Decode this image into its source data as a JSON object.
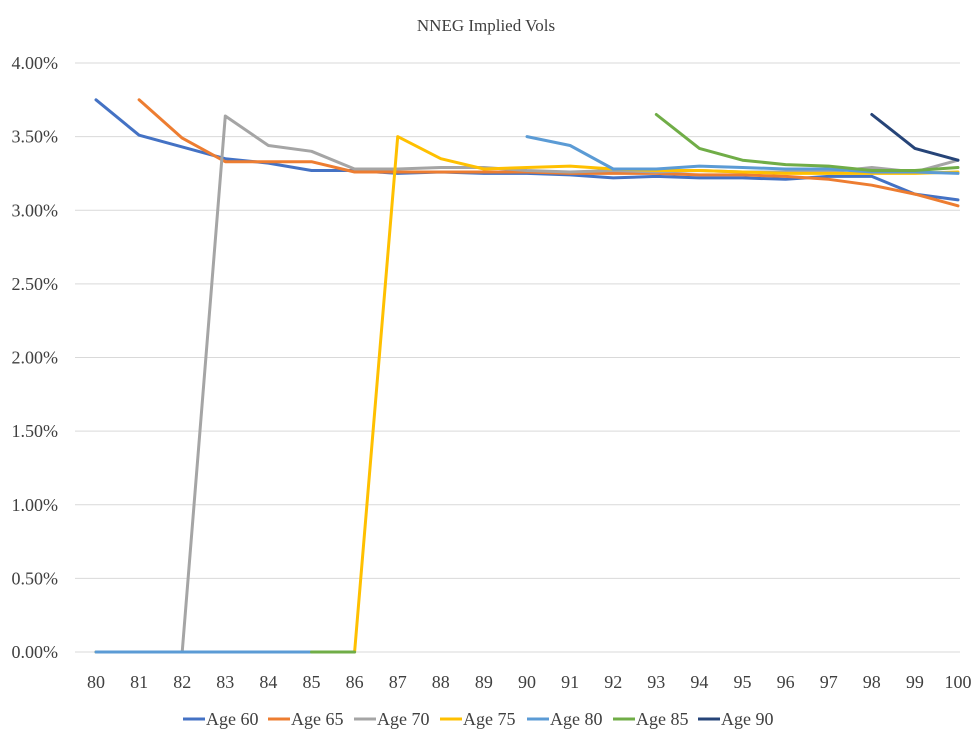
{
  "chart_data": {
    "type": "line",
    "title": "NNEG Implied Vols",
    "xlabel": "",
    "ylabel": "",
    "categories": [
      "80",
      "81",
      "82",
      "83",
      "84",
      "85",
      "86",
      "87",
      "88",
      "89",
      "90",
      "91",
      "92",
      "93",
      "94",
      "95",
      "96",
      "97",
      "98",
      "99",
      "100"
    ],
    "yticks": [
      "0.00%",
      "0.50%",
      "1.00%",
      "1.50%",
      "2.00%",
      "2.50%",
      "3.00%",
      "3.50%",
      "4.00%"
    ],
    "ylim": [
      0,
      0.04
    ],
    "grid": true,
    "legend": "bottom",
    "series": [
      {
        "name": "Age 60",
        "color": "#4472C4",
        "values": [
          0.0375,
          0.0351,
          0.0343,
          0.0335,
          0.0332,
          0.0327,
          0.0327,
          0.0325,
          0.0326,
          0.0325,
          0.0325,
          0.0324,
          0.0322,
          0.0323,
          0.0322,
          0.0322,
          0.0321,
          0.0323,
          0.0323,
          0.0311,
          0.0307
        ]
      },
      {
        "name": "Age 65",
        "color": "#ED7D31",
        "values": [
          null,
          0.0375,
          0.0349,
          0.0333,
          0.0333,
          0.0333,
          0.0326,
          0.0326,
          0.0326,
          0.0326,
          0.0326,
          0.0325,
          0.0325,
          0.0325,
          0.0324,
          0.0324,
          0.0323,
          0.0321,
          0.0317,
          0.0311,
          0.0303
        ]
      },
      {
        "name": "Age 70",
        "color": "#A5A5A5",
        "values": [
          0.0,
          0.0,
          0.0,
          0.0364,
          0.0344,
          0.034,
          0.0328,
          0.0328,
          0.0329,
          0.0329,
          0.0327,
          0.0326,
          0.0327,
          0.0326,
          0.0327,
          0.0326,
          0.0326,
          0.0326,
          0.0329,
          0.0326,
          0.0334
        ]
      },
      {
        "name": "Age 75",
        "color": "#FFC000",
        "values": [
          0.0,
          0.0,
          0.0,
          0.0,
          0.0,
          0.0,
          0.0,
          0.035,
          0.0335,
          0.0328,
          0.0329,
          0.033,
          0.0328,
          0.0327,
          0.0327,
          0.0326,
          0.0325,
          0.0325,
          0.0325,
          0.0325,
          0.0326
        ]
      },
      {
        "name": "Age 80",
        "color": "#5B9BD5",
        "values": [
          0.0,
          0.0,
          0.0,
          0.0,
          0.0,
          0.0,
          null,
          null,
          null,
          null,
          0.035,
          0.0344,
          0.0328,
          0.0328,
          0.033,
          0.0329,
          0.0328,
          0.0328,
          0.0326,
          0.0326,
          0.0325
        ]
      },
      {
        "name": "Age 85",
        "color": "#70AD47",
        "values": [
          null,
          null,
          null,
          null,
          null,
          0.0,
          0.0,
          null,
          null,
          null,
          null,
          null,
          null,
          0.0365,
          0.0342,
          0.0334,
          0.0331,
          0.033,
          0.0327,
          0.0327,
          0.0329
        ]
      },
      {
        "name": "Age 90",
        "color": "#264478",
        "values": [
          null,
          null,
          null,
          null,
          null,
          null,
          null,
          null,
          null,
          null,
          null,
          null,
          null,
          null,
          null,
          null,
          null,
          null,
          0.0365,
          0.0342,
          0.0334
        ]
      }
    ]
  }
}
